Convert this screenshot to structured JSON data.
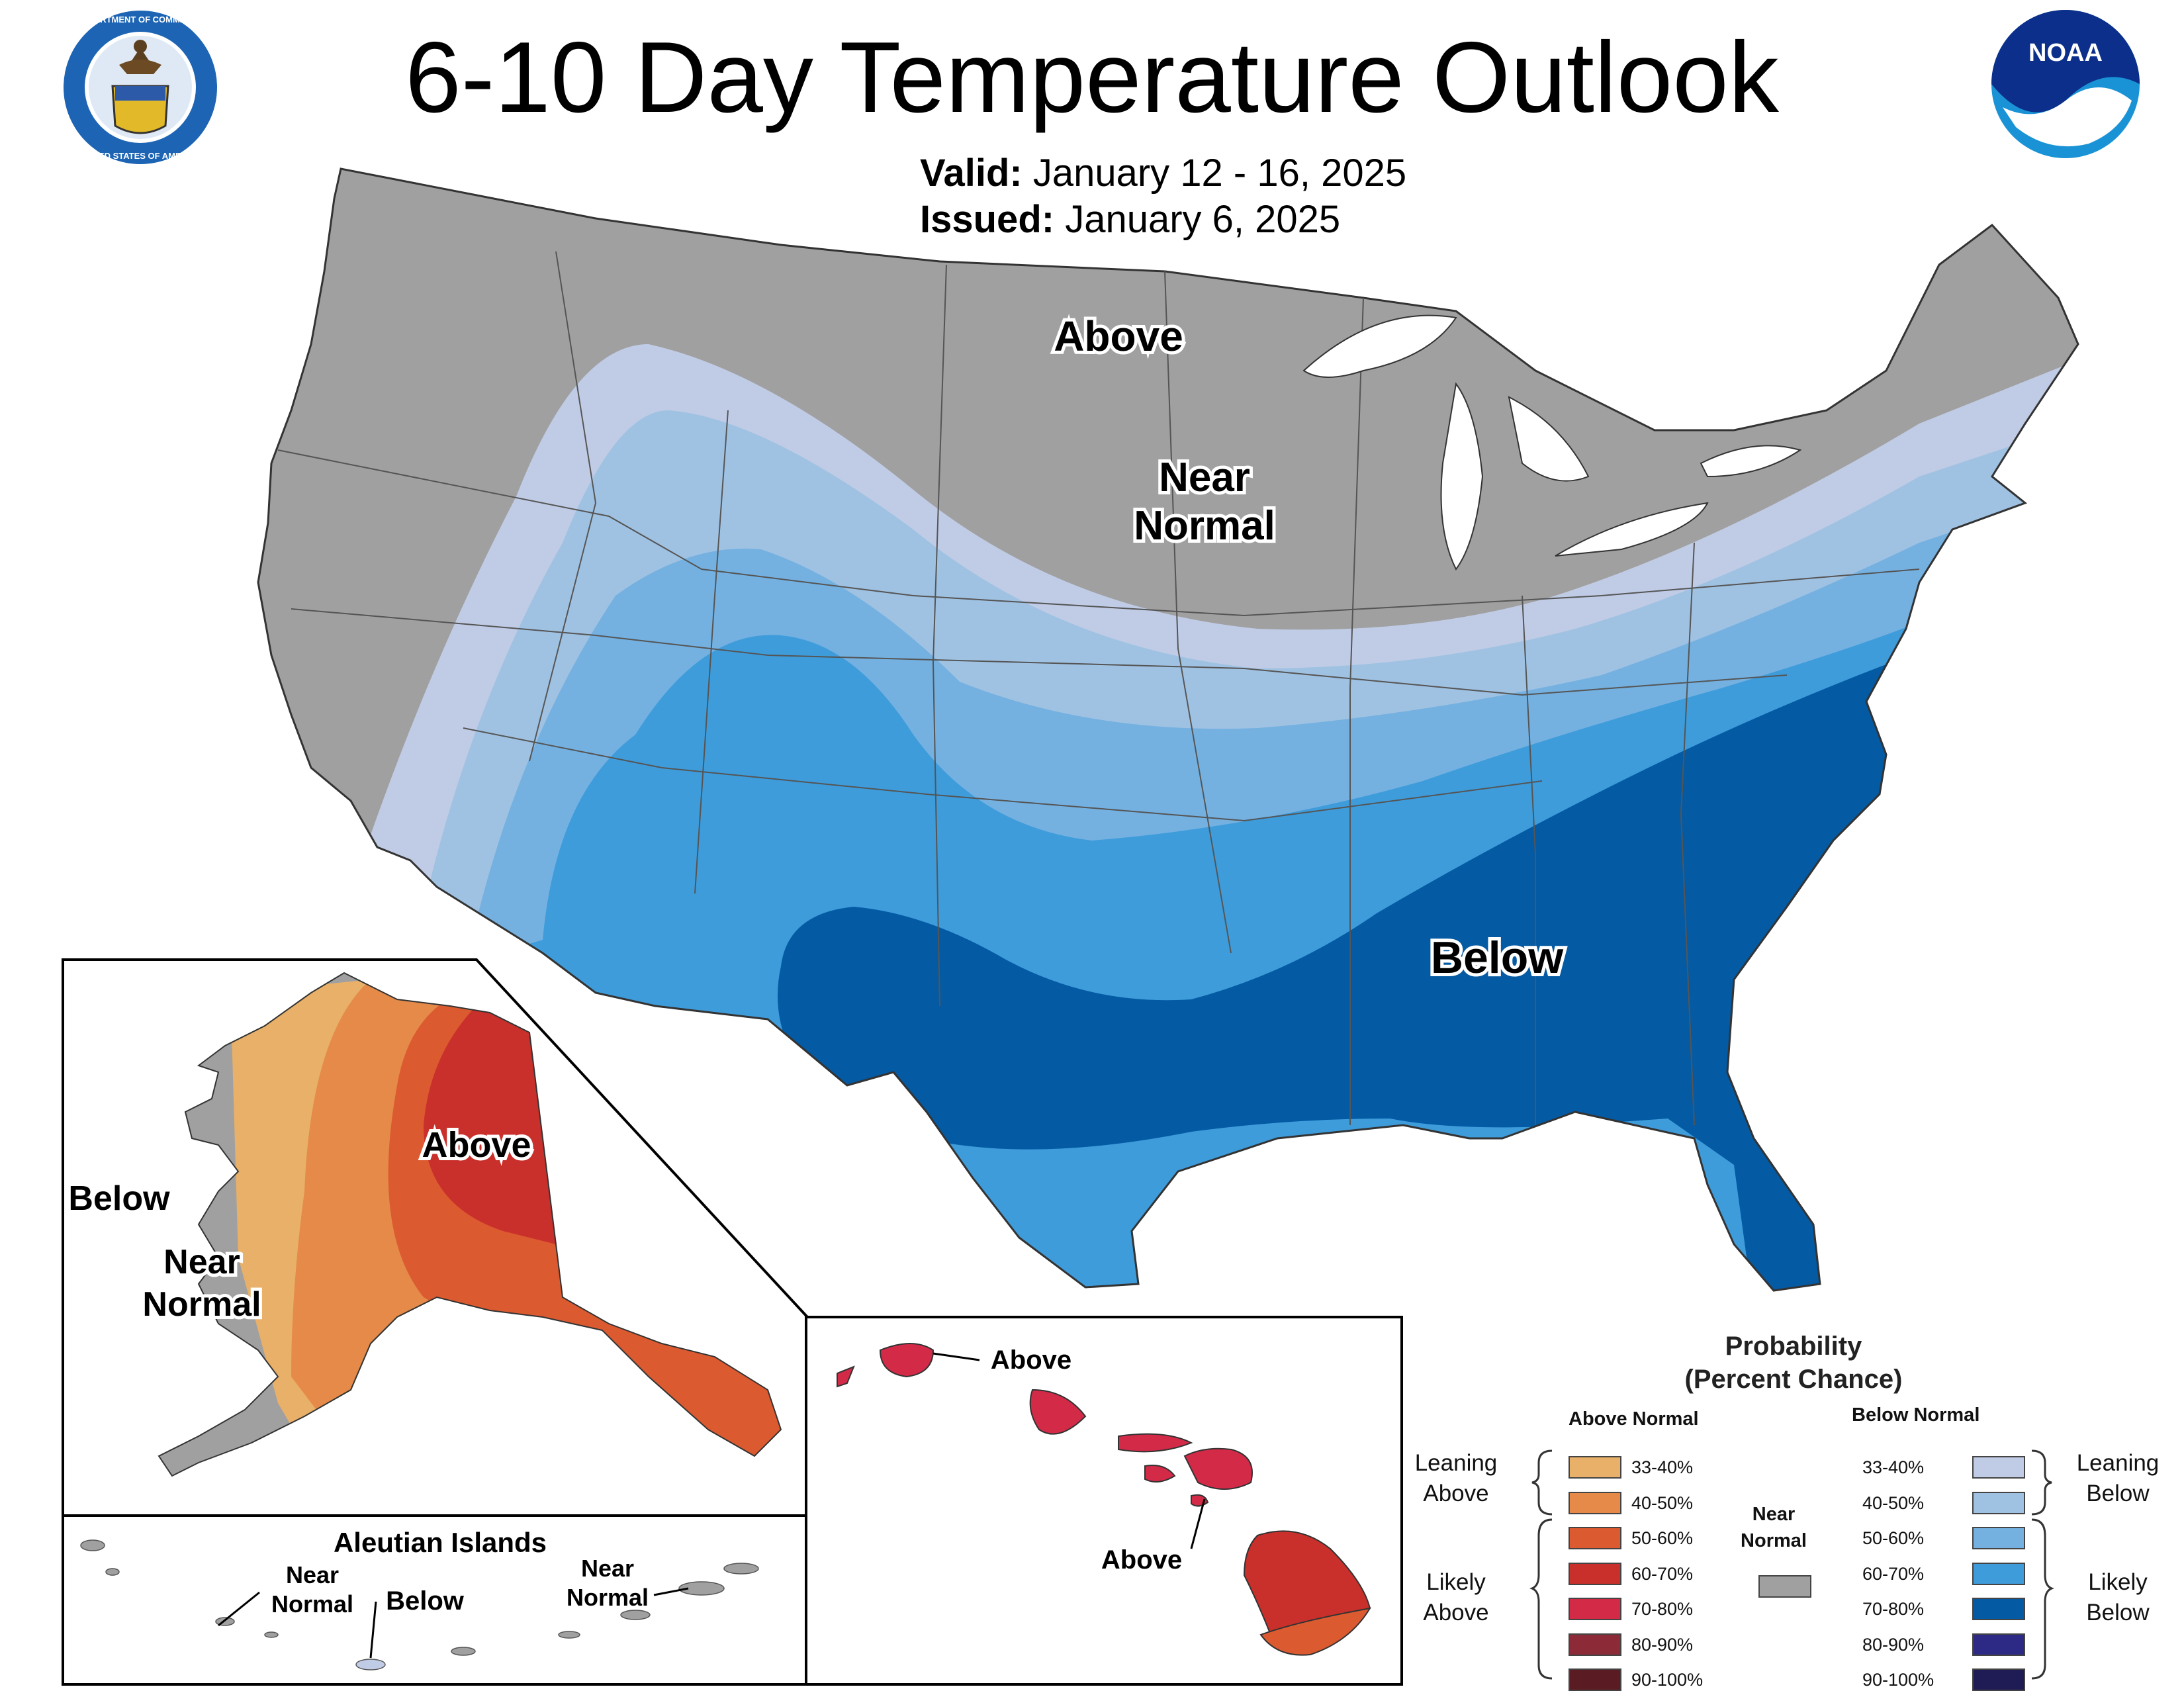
{
  "header": {
    "title": "6-10 Day Temperature Outlook",
    "valid_label": "Valid:",
    "valid_value": "January 12 - 16, 2025",
    "issued_label": "Issued:",
    "issued_value": "January 6, 2025",
    "left_seal": "department-of-commerce-seal",
    "left_seal_text": "DEPARTMENT OF COMMERCE · UNITED STATES OF AMERICA",
    "right_logo": "noaa-logo",
    "right_logo_text": "NOAA"
  },
  "map_labels": {
    "conus_above": "Above",
    "conus_near_1": "Near",
    "conus_near_2": "Normal",
    "conus_below": "Below",
    "alaska_above": "Above",
    "alaska_below": "Below",
    "alaska_near_1": "Near",
    "alaska_near_2": "Normal",
    "aleutian_title": "Aleutian Islands",
    "aleutian_near_left_1": "Near",
    "aleutian_near_left_2": "Normal",
    "aleutian_below": "Below",
    "aleutian_near_right_1": "Near",
    "aleutian_near_right_2": "Normal",
    "hawaii_above_top": "Above",
    "hawaii_above_bottom": "Above"
  },
  "legend": {
    "title_line1": "Probability",
    "title_line2": "(Percent Chance)",
    "above_header": "Above Normal",
    "below_header": "Below Normal",
    "near_normal_1": "Near",
    "near_normal_2": "Normal",
    "near_normal_color": "#a0a0a0",
    "leaning_above_1": "Leaning",
    "leaning_above_2": "Above",
    "likely_above_1": "Likely",
    "likely_above_2": "Above",
    "leaning_below_1": "Leaning",
    "leaning_below_2": "Below",
    "likely_below_1": "Likely",
    "likely_below_2": "Below",
    "above": [
      {
        "range": "33-40%",
        "color": "#e8b068"
      },
      {
        "range": "40-50%",
        "color": "#e58a48"
      },
      {
        "range": "50-60%",
        "color": "#dc5a30"
      },
      {
        "range": "60-70%",
        "color": "#c9302b"
      },
      {
        "range": "70-80%",
        "color": "#d32a48"
      },
      {
        "range": "80-90%",
        "color": "#8c2a38"
      },
      {
        "range": "90-100%",
        "color": "#5a1c22"
      }
    ],
    "below": [
      {
        "range": "33-40%",
        "color": "#c0cce6"
      },
      {
        "range": "40-50%",
        "color": "#a0c2e2"
      },
      {
        "range": "50-60%",
        "color": "#74b1e1"
      },
      {
        "range": "60-70%",
        "color": "#3e9cdb"
      },
      {
        "range": "70-80%",
        "color": "#045aa3"
      },
      {
        "range": "80-90%",
        "color": "#2d2a85"
      },
      {
        "range": "90-100%",
        "color": "#1f1c55"
      }
    ]
  }
}
